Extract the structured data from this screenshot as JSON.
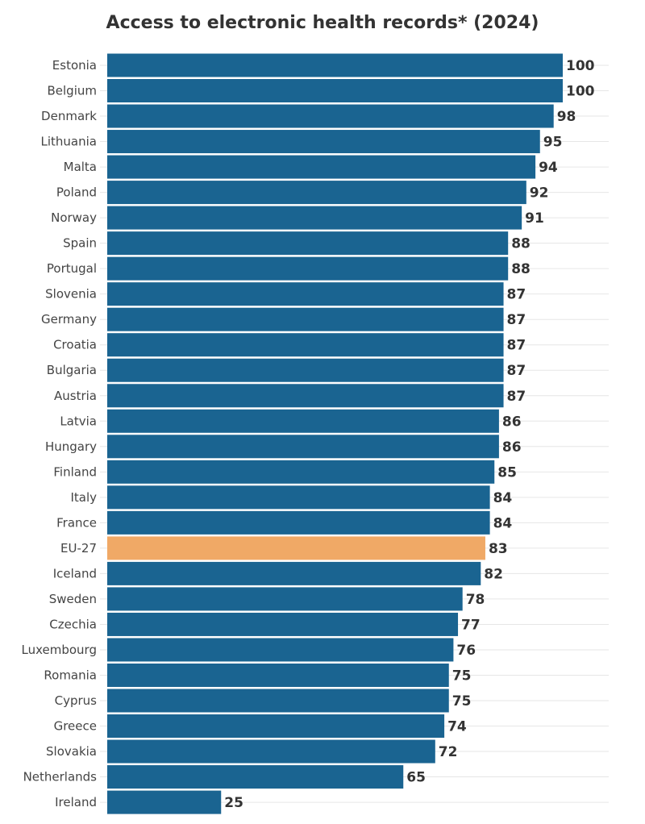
{
  "chart_data": {
    "type": "bar",
    "orientation": "horizontal",
    "title": "Access to electronic health records* (2024)",
    "categories": [
      "Estonia",
      "Belgium",
      "Denmark",
      "Lithuania",
      "Malta",
      "Poland",
      "Norway",
      "Spain",
      "Portugal",
      "Slovenia",
      "Germany",
      "Croatia",
      "Bulgaria",
      "Austria",
      "Latvia",
      "Hungary",
      "Finland",
      "Italy",
      "France",
      "EU-27",
      "Iceland",
      "Sweden",
      "Czechia",
      "Luxembourg",
      "Romania",
      "Cyprus",
      "Greece",
      "Slovakia",
      "Netherlands",
      "Ireland"
    ],
    "values": [
      100,
      100,
      98,
      95,
      94,
      92,
      91,
      88,
      88,
      87,
      87,
      87,
      87,
      87,
      86,
      86,
      85,
      84,
      84,
      83,
      82,
      78,
      77,
      76,
      75,
      75,
      74,
      72,
      65,
      25
    ],
    "highlight": "EU-27",
    "xlim": [
      0,
      100
    ],
    "grid": true,
    "colors": {
      "bar": "#1a6491",
      "highlight": "#f0a966"
    }
  }
}
